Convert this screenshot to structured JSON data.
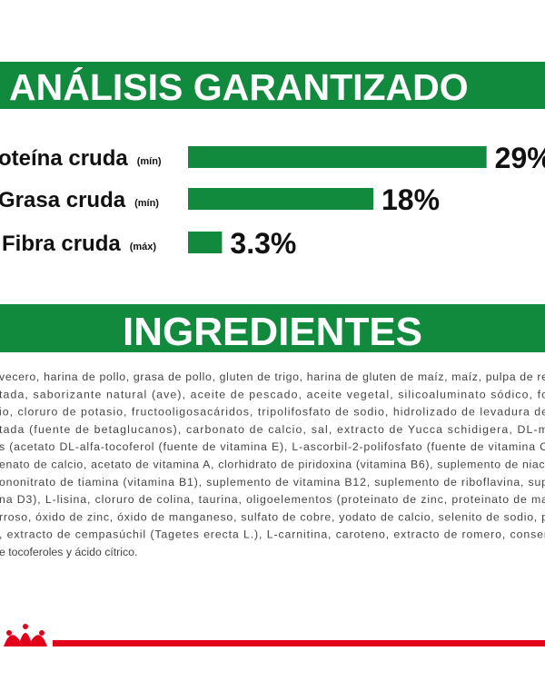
{
  "analysis": {
    "title": "ANÁLISIS GARANTIZADO",
    "rows": [
      {
        "label": "oteína cruda",
        "qualifier": "(mín)",
        "value": 29,
        "value_label": "29%"
      },
      {
        "label": "Grasa cruda",
        "qualifier": "(mín)",
        "value": 18,
        "value_label": "18%"
      },
      {
        "label": "Fibra cruda",
        "qualifier": "(máx)",
        "value": 3.3,
        "value_label": "3.3%"
      }
    ],
    "xlim": [
      0,
      30
    ],
    "color": "#128a3e"
  },
  "ingredients": {
    "title": "INGREDIENTES",
    "lines": [
      "vecero, harina de pollo, grasa de pollo, gluten de trigo, harina de gluten de maíz, maíz, pulpa de re",
      "tada, saborizante natural (ave), aceite de pescado, aceite vegetal, silicoaluminato sódico, fo",
      "io, cloruro de potasio, fructooligosacáridos, tripolifosfato de sodio, hidrolizado de levadura de",
      "tada (fuente de betaglucanos), carbonato de calcio, sal, extracto de Yucca schidigera, DL-m",
      "s (acetato DL-alfa-tocoferol (fuente de vitamina E), L-ascorbil-2-polifosfato (fuente de vitamina C",
      "enato de calcio, acetato de vitamina A, clorhidrato de piridoxina (vitamina B6), suplemento de niaci",
      "ononitrato de tiamina (vitamina B1), suplemento de vitamina B12, suplemento de riboflavina, sup",
      "na D3), L-lisina, cloruro de colina, taurina, oligoelementos (proteinato de zinc, proteinato de ma",
      "rroso, óxido de zinc, óxido de manganeso, sulfato de cobre, yodato de calcio, selenito de sodio, p",
      ", extracto de cempasúchil (Tagetes erecta L.), L-carnitina, caroteno, extracto de romero, conser",
      "e tocoferoles y ácido cítrico."
    ]
  }
}
